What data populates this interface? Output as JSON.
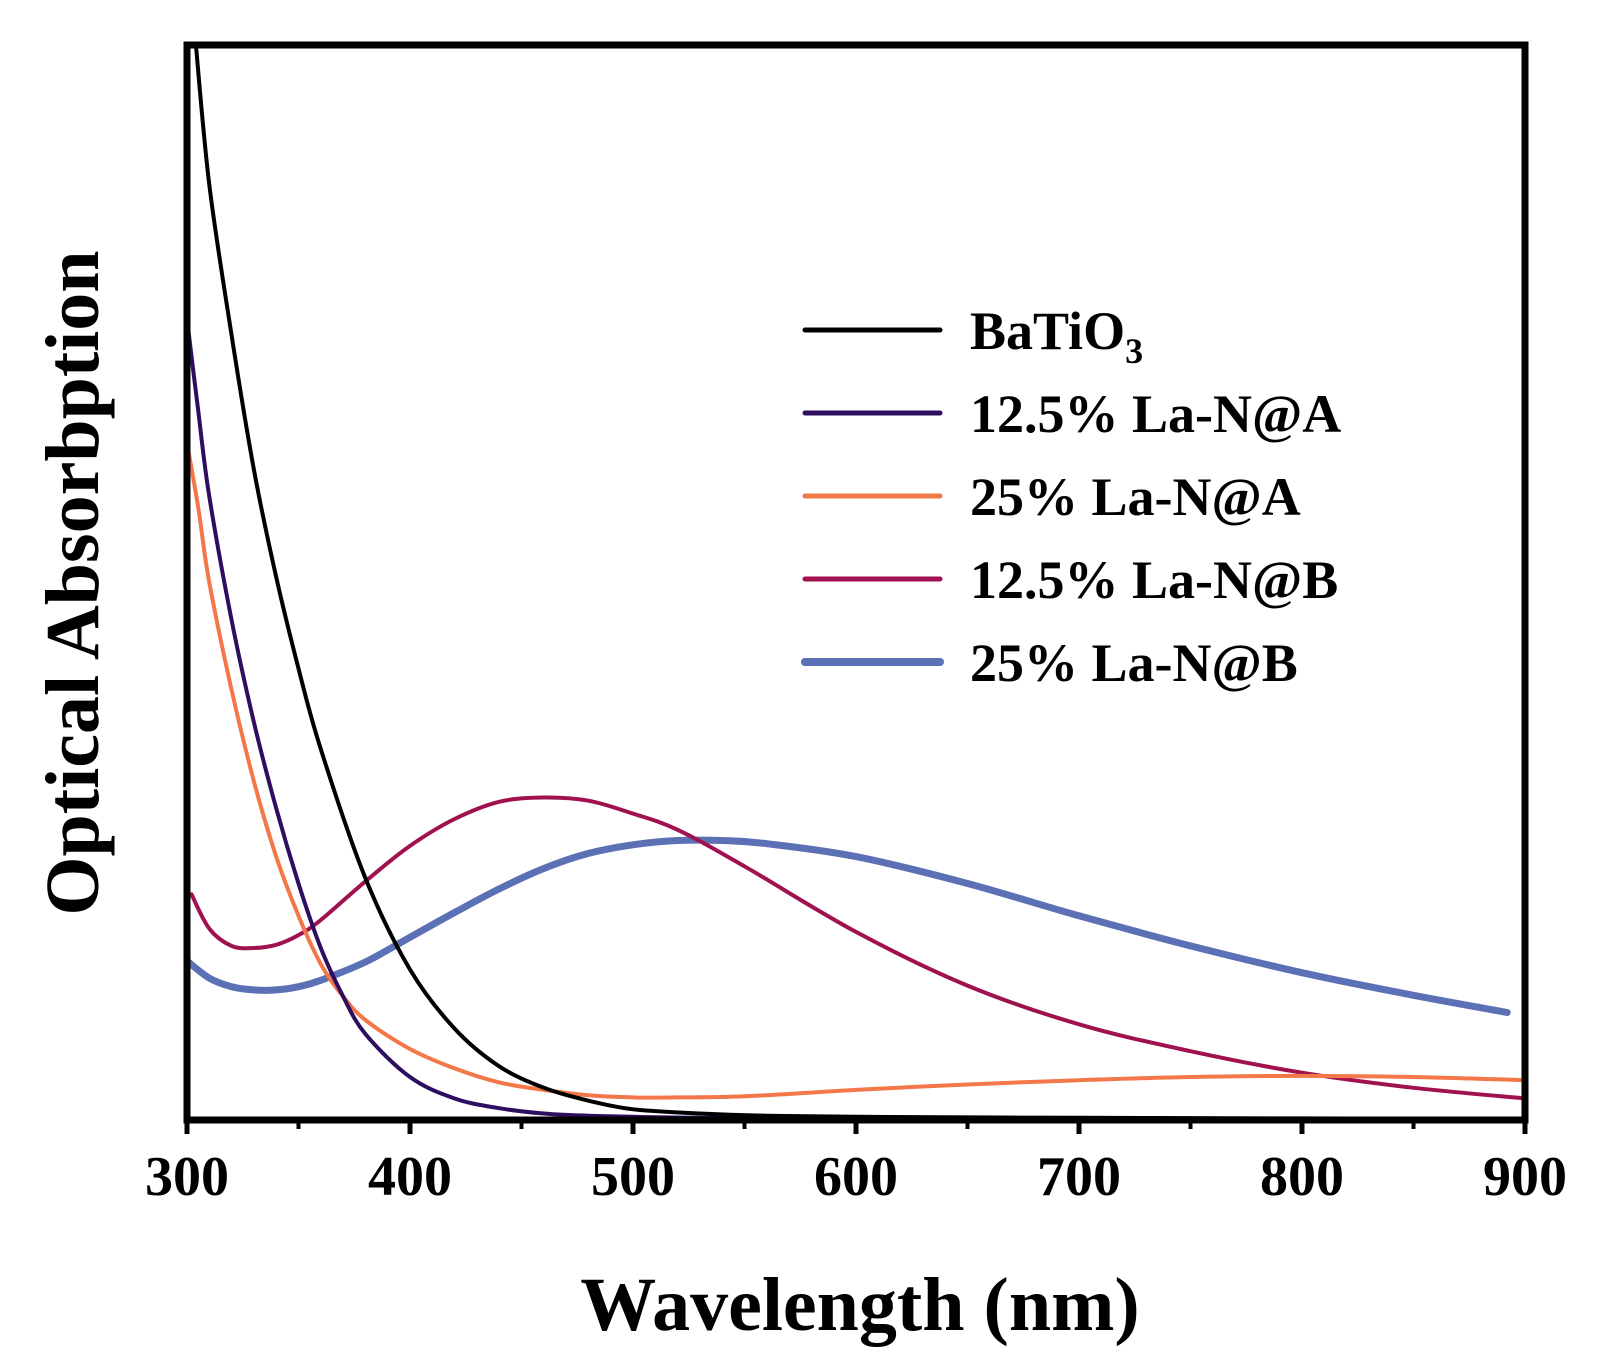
{
  "chart_data": {
    "type": "line",
    "title": "",
    "xlabel": "Wavelength (nm)",
    "ylabel": "Optical Absorbption",
    "xlim": [
      300,
      900
    ],
    "ylim": [
      0,
      1
    ],
    "x_ticks": [
      "300",
      "400",
      "500",
      "600",
      "700",
      "800",
      "900"
    ],
    "y_ticks_shown": false,
    "grid": false,
    "legend_position": "upper-right",
    "series": [
      {
        "name": "BaTiO",
        "name_subscript": "3",
        "color": "#000000",
        "line_width": 4,
        "x": [
          304,
          310,
          320,
          330,
          340,
          350,
          360,
          380,
          400,
          420,
          440,
          460,
          480,
          500,
          530,
          560,
          600,
          700,
          800,
          880
        ],
        "y": [
          1.0,
          0.87,
          0.73,
          0.605,
          0.505,
          0.42,
          0.345,
          0.225,
          0.14,
          0.085,
          0.05,
          0.03,
          0.018,
          0.01,
          0.006,
          0.004,
          0.003,
          0.002,
          0.0015,
          0.001
        ]
      },
      {
        "name": "12.5% La-N@A",
        "color": "#2e0e5e",
        "line_width": 4,
        "x": [
          300,
          305,
          310,
          320,
          330,
          340,
          350,
          360,
          370,
          380,
          400,
          420,
          440,
          460,
          480,
          500,
          530,
          600,
          700,
          800,
          880
        ],
        "y": [
          0.745,
          0.66,
          0.58,
          0.465,
          0.37,
          0.29,
          0.22,
          0.16,
          0.115,
          0.08,
          0.04,
          0.02,
          0.011,
          0.006,
          0.004,
          0.003,
          0.002,
          0.001,
          0.0008,
          0.0006,
          0.0005
        ]
      },
      {
        "name": "25% La-N@A",
        "color": "#f4774a",
        "line_width": 4,
        "x": [
          300,
          305,
          310,
          320,
          330,
          340,
          350,
          360,
          370,
          380,
          400,
          420,
          440,
          460,
          480,
          500,
          520,
          550,
          600,
          650,
          700,
          750,
          800,
          850,
          900
        ],
        "y": [
          0.63,
          0.57,
          0.5,
          0.4,
          0.315,
          0.245,
          0.19,
          0.145,
          0.115,
          0.093,
          0.066,
          0.048,
          0.035,
          0.028,
          0.023,
          0.021,
          0.021,
          0.022,
          0.028,
          0.033,
          0.037,
          0.04,
          0.041,
          0.04,
          0.037
        ]
      },
      {
        "name": "12.5% La-N@B",
        "color": "#a0114f",
        "line_width": 4,
        "x": [
          302,
          310,
          320,
          330,
          340,
          350,
          360,
          380,
          400,
          420,
          440,
          460,
          480,
          500,
          520,
          550,
          600,
          650,
          700,
          750,
          800,
          850,
          900
        ],
        "y": [
          0.21,
          0.178,
          0.162,
          0.16,
          0.163,
          0.172,
          0.186,
          0.222,
          0.255,
          0.28,
          0.296,
          0.3,
          0.297,
          0.285,
          0.27,
          0.236,
          0.175,
          0.125,
          0.089,
          0.064,
          0.044,
          0.03,
          0.02
        ]
      },
      {
        "name": "25% La-N@B",
        "color": "#5b70b5",
        "line_width": 7,
        "x": [
          300,
          310,
          320,
          330,
          340,
          350,
          360,
          380,
          400,
          420,
          440,
          460,
          480,
          500,
          520,
          540,
          560,
          600,
          650,
          700,
          750,
          800,
          850,
          892
        ],
        "y": [
          0.148,
          0.132,
          0.124,
          0.121,
          0.121,
          0.124,
          0.13,
          0.147,
          0.17,
          0.193,
          0.215,
          0.234,
          0.248,
          0.256,
          0.26,
          0.26,
          0.257,
          0.245,
          0.22,
          0.19,
          0.162,
          0.137,
          0.116,
          0.1
        ]
      }
    ]
  }
}
